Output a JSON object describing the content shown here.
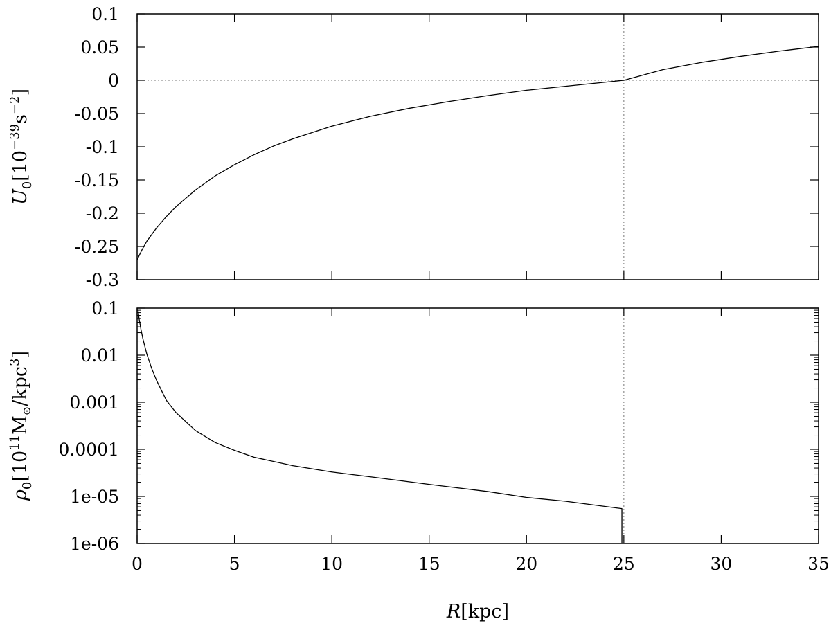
{
  "chart_data": [
    {
      "type": "line",
      "panel": "top",
      "ylabel": {
        "sym": "U",
        "sub": "0",
        "unit_pre": "[10",
        "exp": "−39",
        "unit_mid": "s",
        "exp2": "−2",
        "unit_post": "]"
      },
      "xlim": [
        0,
        35
      ],
      "ylim": [
        -0.3,
        0.1
      ],
      "yscale": "linear",
      "xticks": [
        0,
        5,
        10,
        15,
        20,
        25,
        30,
        35
      ],
      "yticks": [
        -0.3,
        -0.25,
        -0.2,
        -0.15,
        -0.1,
        -0.05,
        0,
        0.05,
        0.1
      ],
      "ytick_labels": [
        "-0.3",
        "-0.25",
        "-0.2",
        "-0.15",
        "-0.1",
        "-0.05",
        "0",
        "0.05",
        "0.1"
      ],
      "reference_lines": [
        {
          "orientation": "horizontal",
          "value": 0,
          "style": "dotted"
        },
        {
          "orientation": "vertical",
          "value": 25,
          "style": "dotted"
        }
      ],
      "series": [
        {
          "x": [
            0,
            0.25,
            0.5,
            1,
            1.5,
            2,
            3,
            4,
            5,
            6,
            7,
            8,
            10,
            12,
            14,
            16,
            18,
            20,
            22,
            24,
            25,
            27,
            29,
            31,
            33,
            35
          ],
          "y": [
            -0.27,
            -0.255,
            -0.242,
            -0.222,
            -0.205,
            -0.19,
            -0.165,
            -0.144,
            -0.127,
            -0.112,
            -0.099,
            -0.088,
            -0.069,
            -0.054,
            -0.042,
            -0.032,
            -0.023,
            -0.015,
            -0.009,
            -0.003,
            0,
            0.016,
            0.027,
            0.036,
            0.044,
            0.051
          ]
        }
      ]
    },
    {
      "type": "line",
      "panel": "bottom",
      "ylabel": {
        "sym": "ρ",
        "sub": "0",
        "unit_pre": "[10",
        "exp": "11",
        "unit_mid": "M",
        "sub2": "⊙",
        "unit_post": "/kpc",
        "exp2": "3",
        "unit_end": "]"
      },
      "xlabel": {
        "sym": "R",
        "unit": "[kpc]"
      },
      "xlim": [
        0,
        35
      ],
      "ylim": [
        1e-06,
        0.1
      ],
      "yscale": "log",
      "xticks": [
        0,
        5,
        10,
        15,
        20,
        25,
        30,
        35
      ],
      "xtick_labels": [
        "0",
        "5",
        "10",
        "15",
        "20",
        "25",
        "30",
        "35"
      ],
      "yticks": [
        1e-06,
        1e-05,
        0.0001,
        0.001,
        0.01,
        0.1
      ],
      "ytick_labels": [
        "1e-06",
        "1e-05",
        "0.0001",
        "0.001",
        "0.01",
        "0.1"
      ],
      "reference_lines": [
        {
          "orientation": "vertical",
          "value": 25,
          "style": "dotted"
        }
      ],
      "series": [
        {
          "x": [
            0.05,
            0.1,
            0.2,
            0.3,
            0.5,
            0.75,
            1,
            1.5,
            2,
            3,
            4,
            5,
            6,
            8,
            10,
            12,
            15,
            18,
            20,
            22,
            24.9,
            24.9
          ],
          "y": [
            0.09,
            0.06,
            0.035,
            0.022,
            0.0105,
            0.0052,
            0.0029,
            0.0011,
            0.0006,
            0.00025,
            0.00014,
            9.5e-05,
            6.8e-05,
            4.5e-05,
            3.3e-05,
            2.6e-05,
            1.8e-05,
            1.27e-05,
            9.5e-06,
            7.9e-06,
            5.5e-06,
            1e-06
          ]
        }
      ]
    }
  ]
}
